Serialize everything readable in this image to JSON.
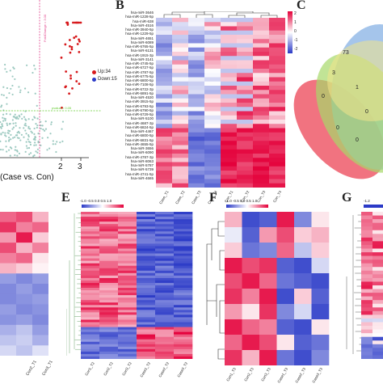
{
  "panels": {
    "B": "B",
    "C": "C",
    "E": "E",
    "F": "F",
    "G": "G"
  },
  "volcano": {
    "xlabel": "(Case vs. Con)",
    "xticks": [
      "2",
      "3"
    ],
    "legend": [
      {
        "label": "Up:34",
        "color": "#d7191c"
      },
      {
        "label": "Down:15",
        "color": "#2b3ac7"
      }
    ],
    "fold_change_label": "FoldChange = 3.00",
    "pvalue_label": "pvalue = 0.05",
    "colors": {
      "up": "#d7191c",
      "ns": "#9cc9c0",
      "vline": "#e0408a",
      "hline": "#66cc33"
    }
  },
  "heatmap_b": {
    "rows": [
      "hsa-miR-3646",
      "hsa-miR-1228-5p",
      "hsa-miR-638",
      "hsa-miR-4516",
      "hsa-miR-3940-5p",
      "hsa-miR-1229-5p",
      "hsa-miR-4651",
      "hsa-miR-6089",
      "hsa-miR-6765-5p",
      "hsa-miR-6131",
      "hsa-miR-1915-3p",
      "hsa-miR-3141",
      "hsa-miR-4745-5p",
      "hsa-miR-6727-5p",
      "hsa-miR-4787-5p",
      "hsa-miR-6775-5p",
      "hsa-miR-6800-5p",
      "hsa-miR-7108-5p",
      "hsa-miR-6722-3p",
      "hsa-miR-6891-5p",
      "hsa-miR-4530",
      "hsa-miR-3915-5p",
      "hsa-miR-6793-5p",
      "hsa-miR-6790-5p",
      "hsa-miR-6729-5p",
      "hsa-miR-5100",
      "hsa-miR-4687-3p",
      "hsa-miR-6824-5p",
      "hsa-miR-4467",
      "hsa-miR-6800-5p",
      "hsa-miR-6831-5p",
      "hsa-miR-4655-5p",
      "hsa-miR-3656",
      "hsa-miR-6090",
      "hsa-miR-4787-3p",
      "hsa-miR-8063",
      "hsa-miR-5787",
      "hsa-miR-5739",
      "hsa-miR-4741-5p",
      "hsa-miR-4665"
    ],
    "columns": [
      "Case_T1",
      "Case_T2",
      "Case_T3",
      "Case_T4",
      "Con_T1",
      "Con_T2",
      "Con_T3",
      "Con_T4"
    ],
    "scale": [
      "2",
      "1",
      "0",
      "-1",
      "-2"
    ]
  },
  "venn_c": {
    "counts": [
      "73",
      "3",
      "1",
      "0",
      "0",
      "0",
      "0"
    ]
  },
  "heatmap_d": {
    "columns": [
      "Con2_T1",
      "Con3_T1"
    ]
  },
  "heatmap_e": {
    "scale": "-1.0 -0.5 0.0 0.5 1.0",
    "columns": [
      "Con1_T2",
      "Con2_T2",
      "Con3_T2",
      "Case1_T2",
      "Case2_T2",
      "Case3_T2"
    ]
  },
  "heatmap_f": {
    "scale": "-1.0 -0.5 0.0 0.5 1.0",
    "columns": [
      "Con1_T3",
      "Con2_T3",
      "Con3_T3",
      "Case1_T3",
      "Case2_T3",
      "Case3_T3"
    ]
  },
  "heatmap_g": {
    "scale": "-1.2"
  }
}
